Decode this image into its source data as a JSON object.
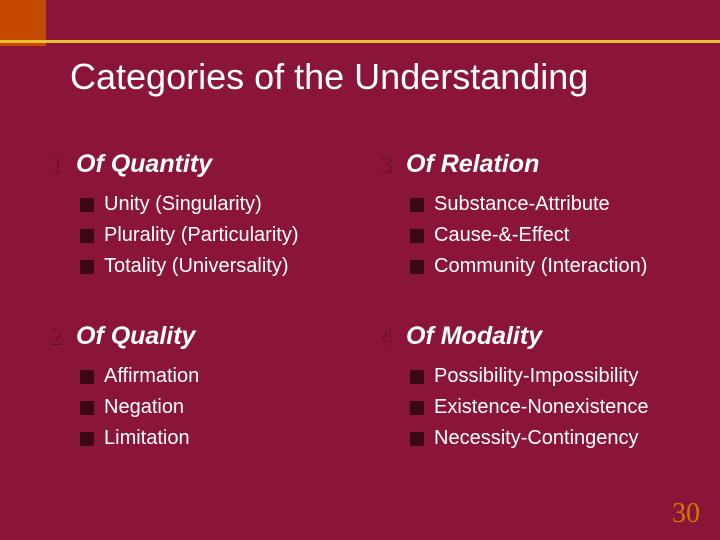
{
  "slide": {
    "title": "Categories of the Understanding",
    "page_number": "30",
    "background_color": "#8a1538",
    "accent_color": "#c44a00",
    "line_color": "#e8c030",
    "bullet_color": "#3a0812",
    "pagenum_color": "#cc7a00",
    "title_fontsize": 36,
    "cat_title_fontsize": 25,
    "item_fontsize": 20
  },
  "categories": [
    {
      "num": "1",
      "title": "Of Quantity",
      "items": [
        "Unity (Singularity)",
        "Plurality (Particularity)",
        "Totality (Universality)"
      ]
    },
    {
      "num": "2",
      "title": "Of Quality",
      "items": [
        "Affirmation",
        "Negation",
        "Limitation"
      ]
    },
    {
      "num": "3",
      "title": "Of Relation",
      "items": [
        "Substance-Attribute",
        "Cause-&-Effect",
        "Community (Interaction)"
      ]
    },
    {
      "num": "4",
      "title": "Of Modality",
      "items": [
        "Possibility-Impossibility",
        "Existence-Nonexistence",
        "Necessity-Contingency"
      ]
    }
  ]
}
